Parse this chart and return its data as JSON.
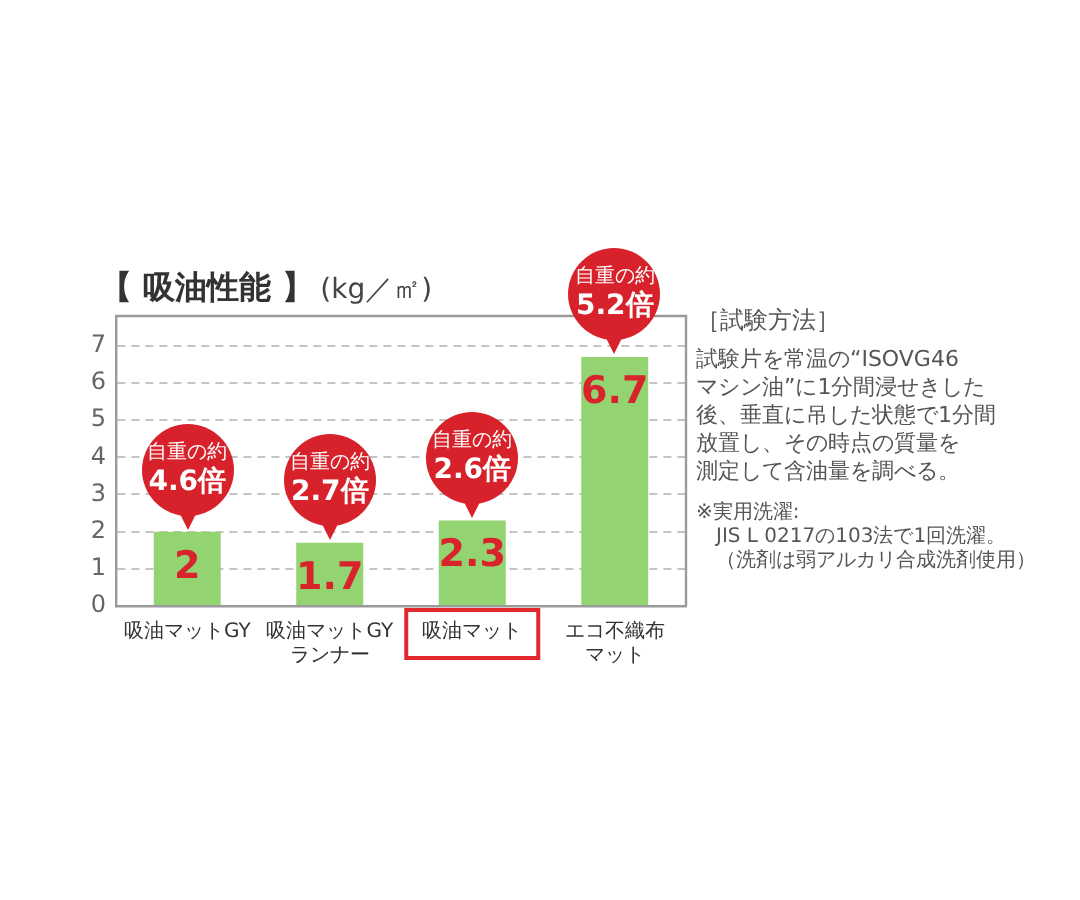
{
  "chart_data": {
    "type": "bar",
    "title": "【 吸油性能 】",
    "ylabel": "(kg／㎡)",
    "categories": [
      "吸油マットGY",
      "吸油マットGYランナー",
      "吸油マット",
      "エコ不織布マット"
    ],
    "values": [
      2,
      1.7,
      2.3,
      6.7
    ],
    "color": "#94d372",
    "ylim": [
      0,
      7.8
    ],
    "yticks": [
      0,
      1,
      2,
      3,
      4,
      5,
      6,
      7
    ],
    "grid": "y",
    "data_labels": true,
    "annotations": [
      {
        "text": "自重の約4.6倍",
        "x": "吸油マットGY",
        "y": 2
      },
      {
        "text": "自重の約2.7倍",
        "x": "吸油マットGYランナー",
        "y": 1.7
      },
      {
        "text": "自重の約2.6倍",
        "x": "吸油マット",
        "y": 2.3
      },
      {
        "text": "自重の約5.2倍",
        "x": "エコ不織布マット",
        "y": 6.7
      },
      "［試験方法］",
      "試験片を常温の“ISOVG46マシン油”に1分間浸せきした後、垂直に吊した状態で1分間放置し、その時点の質量を測定して含油量を調べる。",
      "※実用洗濯:",
      "JIS L 0217の103法で1回洗濯。",
      "（洗剤は弱アルカリ合成洗剤使用）"
    ]
  }
}
